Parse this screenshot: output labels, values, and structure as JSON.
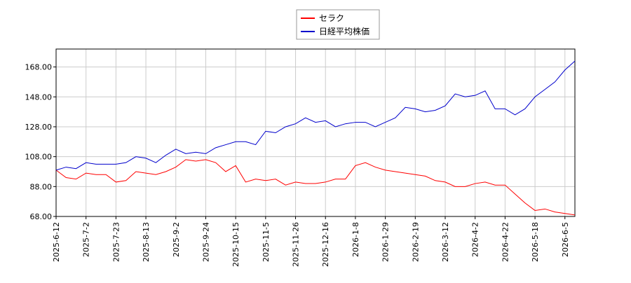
{
  "chart_data": {
    "type": "line",
    "x": [
      "2025-6-12",
      null,
      null,
      "2025-7-2",
      null,
      null,
      "2025-7-23",
      null,
      null,
      "2025-8-13",
      null,
      null,
      "2025-9-2",
      null,
      null,
      "2025-9-24",
      null,
      null,
      "2025-10-15",
      null,
      null,
      "2025-11-5",
      null,
      null,
      "2025-11-26",
      null,
      null,
      "2025-12-16",
      null,
      null,
      "2026-1-8",
      null,
      null,
      "2026-1-29",
      null,
      null,
      "2026-2-19",
      null,
      null,
      "2026-3-12",
      null,
      null,
      "2026-4-2",
      null,
      null,
      "2026-4-22",
      null,
      null,
      "2026-5-18",
      null,
      null,
      "2026-6-5",
      null
    ],
    "series": [
      {
        "name": "セラク",
        "color": "#ff0000",
        "values": [
          99,
          94,
          93,
          97,
          96,
          96,
          91,
          92,
          98,
          97,
          96,
          98,
          101,
          106,
          105,
          106,
          104,
          98,
          102,
          91,
          93,
          92,
          93,
          89,
          91,
          90,
          90,
          91,
          93,
          93,
          102,
          104,
          101,
          99,
          98,
          97,
          96,
          95,
          92,
          91,
          88,
          88,
          90,
          91,
          89,
          89,
          83,
          77,
          72,
          73,
          71,
          70,
          69
        ]
      },
      {
        "name": "日経平均株価",
        "color": "#0000cc",
        "values": [
          99,
          101,
          100,
          104,
          103,
          103,
          103,
          104,
          108,
          107,
          104,
          109,
          113,
          110,
          111,
          110,
          114,
          116,
          118,
          118,
          116,
          125,
          124,
          128,
          130,
          134,
          131,
          132,
          128,
          130,
          131,
          131,
          128,
          131,
          134,
          141,
          140,
          138,
          139,
          142,
          150,
          148,
          149,
          152,
          140,
          140,
          136,
          140,
          148,
          153,
          158,
          166,
          172
        ]
      }
    ],
    "ylim": [
      68,
      180
    ],
    "yticks": [
      {
        "value": 68,
        "label": "68.00"
      },
      {
        "value": 88,
        "label": "88.00"
      },
      {
        "value": 108,
        "label": "108.00"
      },
      {
        "value": 128,
        "label": "128.00"
      },
      {
        "value": 148,
        "label": "148.00"
      },
      {
        "value": 168,
        "label": "168.00"
      }
    ],
    "grid": true,
    "legend": "top"
  }
}
